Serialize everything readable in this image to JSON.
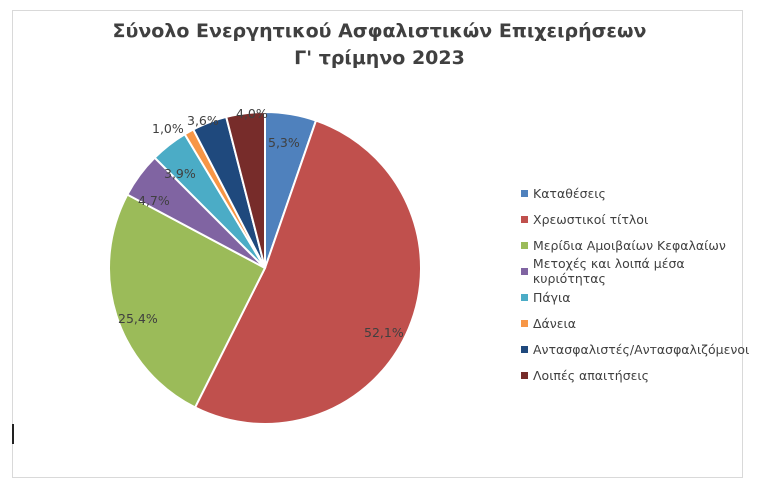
{
  "title_line1": "Σύνολο Ενεργητικού Ασφαλιστικών Επιχειρήσεων",
  "title_line2": "Γ' τρίμηνο 2023",
  "legend": [
    {
      "label": "Καταθέσεις",
      "color": "#4f81bd"
    },
    {
      "label": "Χρεωστικοί τίτλοι",
      "color": "#c0504d"
    },
    {
      "label": "Μερίδια Αμοιβαίων Κεφαλαίων",
      "color": "#9bbb59"
    },
    {
      "label": "Μετοχές και λοιπά μέσα κυριότητας",
      "color": "#8064a2"
    },
    {
      "label": "Πάγια",
      "color": "#4bacc6"
    },
    {
      "label": "Δάνεια",
      "color": "#f79646"
    },
    {
      "label": "Αντασφαλιστές/Ανтασφαλιζόμενοι",
      "color": "#1f497d"
    },
    {
      "label": "Λοιπές απαιτήσεις",
      "color": "#772c2a"
    }
  ],
  "labels": {
    "l0": "5,3%",
    "l1": "52,1%",
    "l2": "25,4%",
    "l3": "4,7%",
    "l4": "3,9%",
    "l5": "1,0%",
    "l6": "3,6%",
    "l7": "4,0%"
  },
  "chart_data": {
    "type": "pie",
    "title": "Σύνολο Ενεργητικού Ασφαλιστικών Επιχειρήσεων Γ' τρίμηνο 2023",
    "categories": [
      "Καταθέσεις",
      "Χρεωστικοί τίτλοι",
      "Μερίδια Αμοιβαίων Κεφαλαίων",
      "Μετοχές και λοιπά μέσα κυριότητας",
      "Πάγια",
      "Δάνεια",
      "Αντασφαλιστές/Αντασφαλιζόμενοι",
      "Λοιπές απαιτήσεις"
    ],
    "values": [
      5.3,
      52.1,
      25.4,
      4.7,
      3.9,
      1.0,
      3.6,
      4.0
    ],
    "unit": "%",
    "colors": [
      "#4f81bd",
      "#c0504d",
      "#9bbb59",
      "#8064a2",
      "#4bacc6",
      "#f79646",
      "#1f497d",
      "#772c2a"
    ],
    "legend_position": "right",
    "start_angle": "12 o'clock, clockwise"
  }
}
